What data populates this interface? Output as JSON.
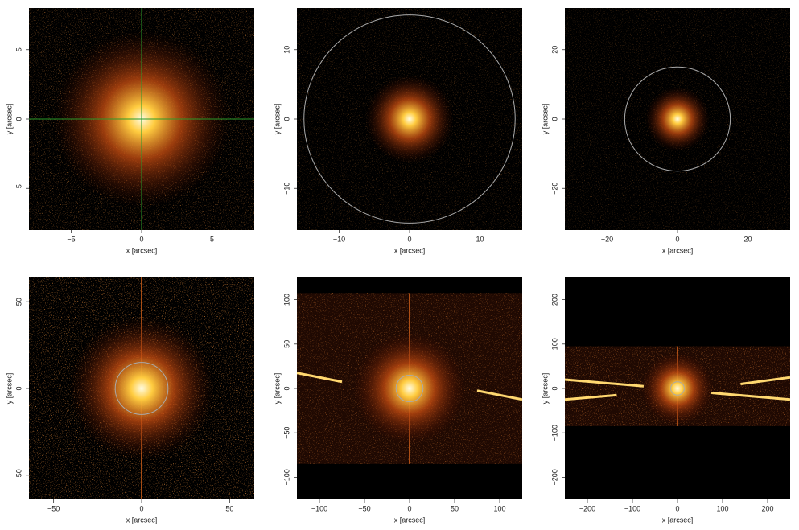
{
  "chart_data": [
    {
      "type": "image",
      "xlabel": "x [arcsec]",
      "ylabel": "y [arcsec]",
      "xlim": [
        -8,
        8
      ],
      "ylim": [
        -8,
        8
      ],
      "xticks": [
        {
          "value": -5,
          "label": "−5"
        },
        0,
        5
      ],
      "yticks": [
        {
          "value": -5,
          "label": "−5"
        },
        0,
        5
      ],
      "crosshair": [
        0,
        0
      ]
    },
    {
      "type": "image",
      "xlabel": "x [arcsec]",
      "ylabel": "y [arcsec]",
      "xlim": [
        -16,
        16
      ],
      "ylim": [
        -16,
        16
      ],
      "xticks": [
        {
          "value": -10,
          "label": "−10"
        },
        0,
        10
      ],
      "yticks": [
        {
          "value": -10,
          "label": "−10"
        },
        0,
        10
      ],
      "circle_radius": 15
    },
    {
      "type": "image",
      "xlabel": "x [arcsec]",
      "ylabel": "y [arcsec]",
      "xlim": [
        -32,
        32
      ],
      "ylim": [
        -32,
        32
      ],
      "xticks": [
        {
          "value": -20,
          "label": "−20"
        },
        0,
        20
      ],
      "yticks": [
        {
          "value": -20,
          "label": "−20"
        },
        0,
        20
      ],
      "circle_radius": 15
    },
    {
      "type": "image",
      "xlabel": "x [arcsec]",
      "ylabel": "y [arcsec]",
      "xlim": [
        -64,
        64
      ],
      "ylim": [
        -64,
        64
      ],
      "xticks": [
        {
          "value": -50,
          "label": "−50"
        },
        0,
        50
      ],
      "yticks": [
        {
          "value": -50,
          "label": "−50"
        },
        0,
        50
      ],
      "circle_radius": 15
    },
    {
      "type": "image",
      "xlabel": "x [arcsec]",
      "ylabel": "y [arcsec]",
      "xlim": [
        -125,
        125
      ],
      "ylim": [
        -125,
        125
      ],
      "xticks": [
        {
          "value": -100,
          "label": "−100"
        },
        {
          "value": -50,
          "label": "−50"
        },
        0,
        50,
        100
      ],
      "yticks": [
        {
          "value": -100,
          "label": "−100"
        },
        {
          "value": -50,
          "label": "−50"
        },
        0,
        50,
        100
      ],
      "circle_radius": 15
    },
    {
      "type": "image",
      "xlabel": "x [arcsec]",
      "ylabel": "y [arcsec]",
      "xlim": [
        -250,
        250
      ],
      "ylim": [
        -250,
        250
      ],
      "xticks": [
        {
          "value": -200,
          "label": "−200"
        },
        {
          "value": -100,
          "label": "−100"
        },
        0,
        100,
        200
      ],
      "yticks": [
        {
          "value": -200,
          "label": "−200"
        },
        {
          "value": -100,
          "label": "−100"
        },
        0,
        100,
        200
      ],
      "circle_radius": 15
    }
  ]
}
